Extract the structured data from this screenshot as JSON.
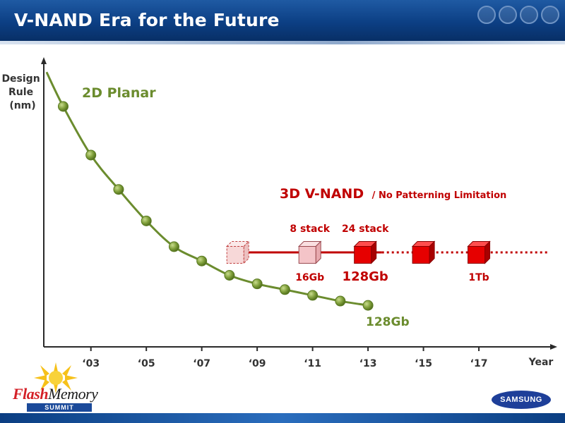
{
  "header": {
    "title": "V-NAND Era for the Future"
  },
  "colors": {
    "planar": "#6b8c2e",
    "vnand": "#c00000",
    "axis": "#2a2a2a",
    "header_bg": "#0c3f84"
  },
  "chart_data": {
    "type": "line",
    "title": "V-NAND Era for the Future",
    "xlabel": "Year",
    "ylabel": "Design Rule (nm)",
    "xlim": [
      2001.3,
      2019.7
    ],
    "ylim": [
      0,
      100
    ],
    "ticks": [
      {
        "year": 2003,
        "label": "‘03"
      },
      {
        "year": 2005,
        "label": "‘05"
      },
      {
        "year": 2007,
        "label": "‘07"
      },
      {
        "year": 2009,
        "label": "‘09"
      },
      {
        "year": 2011,
        "label": "‘11"
      },
      {
        "year": 2013,
        "label": "‘13"
      },
      {
        "year": 2015,
        "label": "‘15"
      },
      {
        "year": 2017,
        "label": "‘17"
      }
    ],
    "planar": {
      "name": "2D Planar",
      "curve_start": {
        "x": 2001.4,
        "y": 96
      },
      "points": [
        {
          "x": 2002,
          "y": 84
        },
        {
          "x": 2003,
          "y": 67
        },
        {
          "x": 2004,
          "y": 55
        },
        {
          "x": 2005,
          "y": 44
        },
        {
          "x": 2006,
          "y": 35
        },
        {
          "x": 2007,
          "y": 30
        },
        {
          "x": 2008,
          "y": 25
        },
        {
          "x": 2009,
          "y": 22
        },
        {
          "x": 2010,
          "y": 20
        },
        {
          "x": 2011,
          "y": 18
        },
        {
          "x": 2012,
          "y": 16
        },
        {
          "x": 2013,
          "y": 14.5
        }
      ],
      "end_label": "128Gb"
    },
    "vnand": {
      "title": "3D V-NAND",
      "subtitle": "/ No Patterning Limitation",
      "line_level": 33,
      "solid_line": {
        "from": 2008.5,
        "to": 2013.5
      },
      "dotted_line": {
        "from": 2013.5,
        "to": 2019.5
      },
      "cubes": [
        {
          "year": 2008.3,
          "style": "dashed",
          "top_label": "",
          "bottom_label": ""
        },
        {
          "year": 2010.9,
          "style": "pink",
          "top_label": "8 stack",
          "bottom_label": "16Gb"
        },
        {
          "year": 2012.9,
          "style": "red",
          "top_label": "24 stack",
          "bottom_label": "128Gb"
        },
        {
          "year": 2015,
          "style": "red",
          "top_label": "",
          "bottom_label": ""
        },
        {
          "year": 2017,
          "style": "red",
          "top_label": "",
          "bottom_label": "1Tb"
        }
      ]
    }
  },
  "logos": {
    "fms_flash": "Flash",
    "fms_memory": "Memory",
    "fms_summit": "SUMMIT",
    "samsung": "SAMSUNG"
  }
}
